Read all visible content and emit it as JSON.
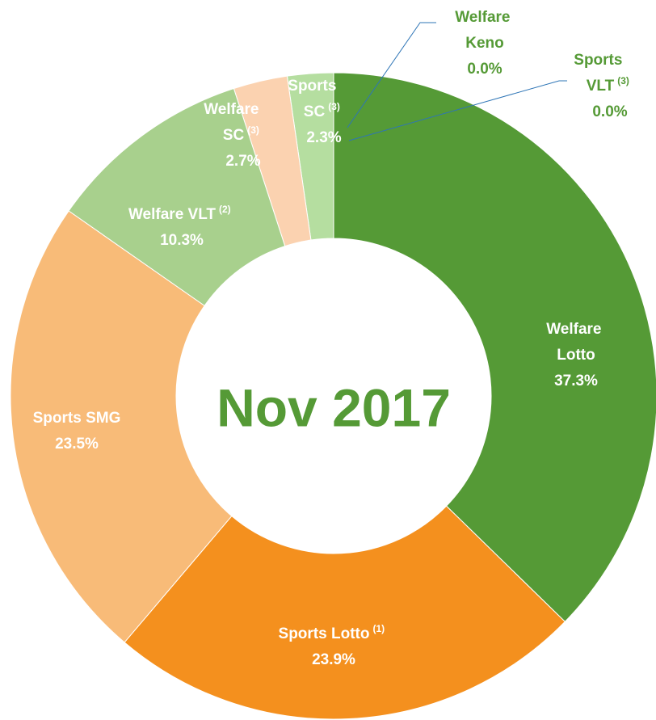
{
  "chart_data": {
    "type": "donut",
    "center_text": "Nov 2017",
    "categories": [
      "Welfare Lotto",
      "Sports Lotto",
      "Sports SMG",
      "Welfare VLT",
      "Welfare SC",
      "Sports SC",
      "Welfare Keno",
      "Sports VLT"
    ],
    "footnotes": [
      null,
      "(1)",
      null,
      "(2)",
      "(3)",
      "(3)",
      null,
      "(3)"
    ],
    "values": [
      37.3,
      23.9,
      23.5,
      10.3,
      2.7,
      2.3,
      0.0,
      0.0
    ],
    "value_labels": [
      "37.3%",
      "23.9%",
      "23.5%",
      "10.3%",
      "2.7%",
      "2.3%",
      "0.0%",
      "0.0%"
    ],
    "colors": [
      "#559a36",
      "#f4901e",
      "#f8bb78",
      "#a8d08d",
      "#fbd2b0",
      "#b5dea0",
      "#2e75b6",
      "#2e75b6"
    ]
  }
}
